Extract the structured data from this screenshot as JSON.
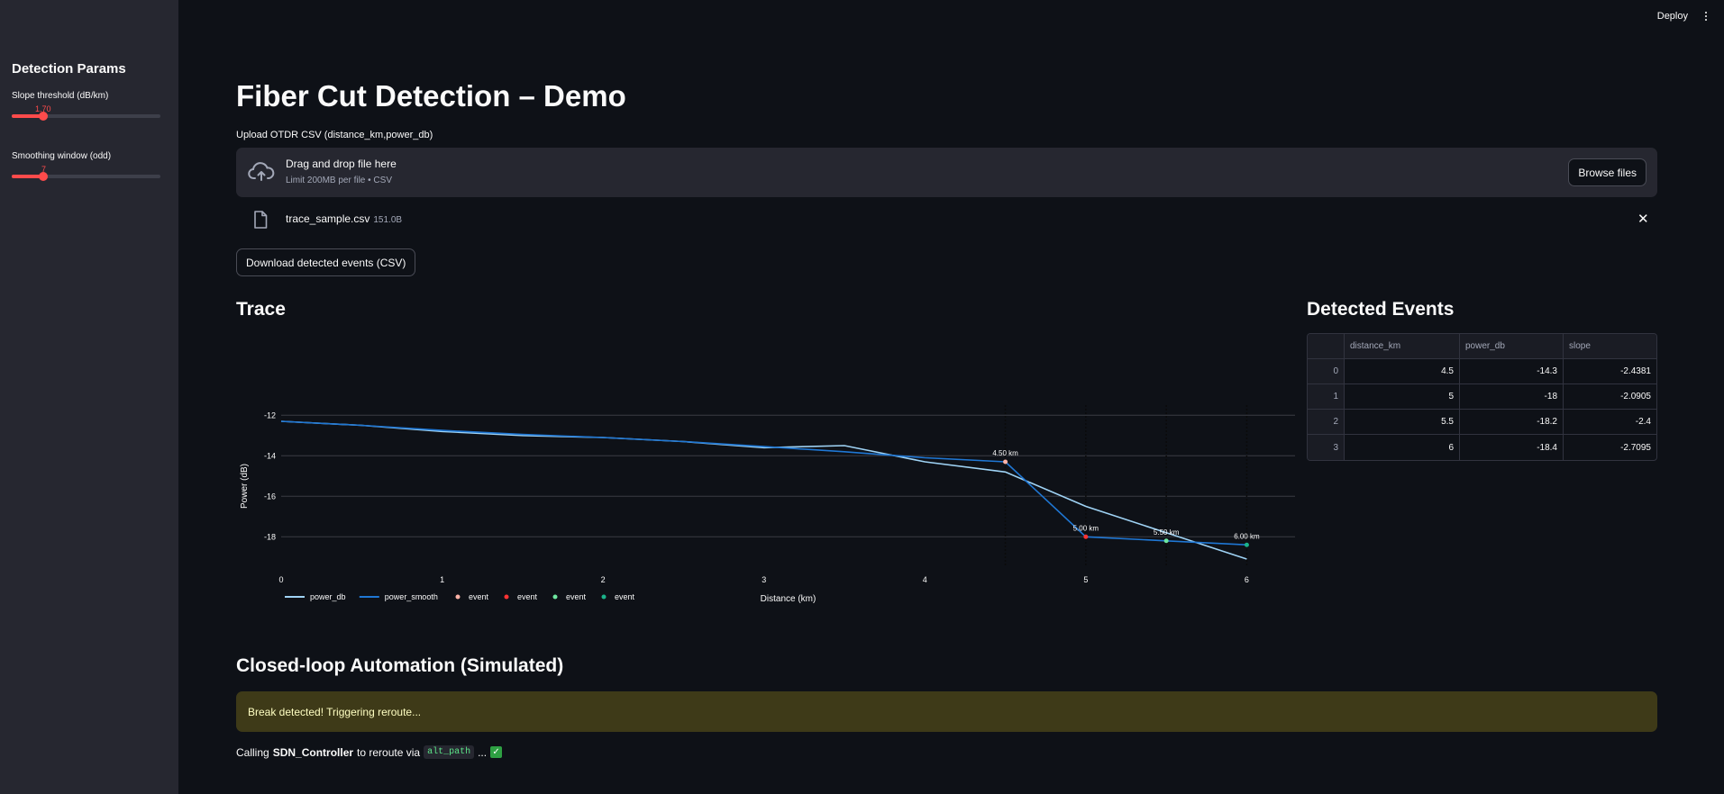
{
  "sidebar": {
    "title": "Detection Params",
    "sliders": [
      {
        "label": "Slope threshold (dB/km)",
        "value": "1.70",
        "fraction": 0.18
      },
      {
        "label": "Smoothing window (odd)",
        "value": "7",
        "fraction": 0.18
      }
    ]
  },
  "topbar": {
    "deploy_label": "Deploy",
    "menu_icon": "kebab-menu-icon"
  },
  "page": {
    "title": "Fiber Cut Detection – Demo"
  },
  "uploader": {
    "label": "Upload OTDR CSV (distance_km,power_db)",
    "drop_title": "Drag and drop file here",
    "drop_subtitle": "Limit 200MB per file • CSV",
    "browse_label": "Browse files",
    "file_name": "trace_sample.csv",
    "file_size": "151.0B"
  },
  "download_label": "Download detected events (CSV)",
  "trace": {
    "heading": "Trace"
  },
  "events": {
    "heading": "Detected Events",
    "columns": [
      "",
      "distance_km",
      "power_db",
      "slope"
    ],
    "rows": [
      [
        "0",
        "4.5",
        "-14.3",
        "-2.4381"
      ],
      [
        "1",
        "5",
        "-18",
        "-2.0905"
      ],
      [
        "2",
        "5.5",
        "-18.2",
        "-2.4"
      ],
      [
        "3",
        "6",
        "-18.4",
        "-2.7095"
      ]
    ]
  },
  "automation": {
    "heading": "Closed-loop Automation (Simulated)",
    "warning": "Break detected! Triggering reroute...",
    "status_prefix": "Calling",
    "status_target": "SDN_Controller",
    "status_mid": "to reroute via",
    "status_code": "alt_path",
    "status_suffix": "..."
  },
  "colors": {
    "accent": "#ff4b4b",
    "power_db": "#9fd3f5",
    "power_smooth": "#1f77d4",
    "event_1": "#ffb3a7",
    "event_2": "#ff3333",
    "event_3": "#6ee7a0",
    "event_4": "#1bb38a"
  },
  "chart_data": {
    "type": "line",
    "xlabel": "Distance (km)",
    "ylabel": "Power (dB)",
    "xlim": [
      0,
      6.3
    ],
    "ylim": [
      -19.5,
      -11.5
    ],
    "x_ticks": [
      "0",
      "1",
      "2",
      "3",
      "4",
      "5",
      "6"
    ],
    "y_ticks": [
      "-12",
      "-14",
      "-16",
      "-18"
    ],
    "grid": "horizontal",
    "legend": "bottom-left",
    "series": [
      {
        "name": "power_db",
        "x": [
          0,
          0.5,
          1,
          1.5,
          2,
          2.5,
          3,
          3.5,
          4,
          4.5,
          5,
          5.5,
          6
        ],
        "y": [
          -12.3,
          -12.5,
          -12.8,
          -13.0,
          -13.1,
          -13.3,
          -13.6,
          -13.5,
          -14.3,
          -14.8,
          -16.5,
          -17.8,
          -19.1
        ]
      },
      {
        "name": "power_smooth",
        "x": [
          0,
          0.5,
          1,
          1.5,
          2,
          2.5,
          3,
          3.5,
          4,
          4.5,
          5,
          5.5,
          6
        ],
        "y": [
          -12.3,
          -12.5,
          -12.75,
          -12.95,
          -13.1,
          -13.3,
          -13.55,
          -13.8,
          -14.1,
          -14.3,
          -18.0,
          -18.2,
          -18.4
        ]
      }
    ],
    "events": [
      {
        "name": "event",
        "x": 4.5,
        "y": -14.3,
        "label": "4.50 km"
      },
      {
        "name": "event",
        "x": 5,
        "y": -18,
        "label": "5.00 km"
      },
      {
        "name": "event",
        "x": 5.5,
        "y": -18.2,
        "label": "5.50 km"
      },
      {
        "name": "event",
        "x": 6,
        "y": -18.4,
        "label": "6.00 km"
      }
    ]
  }
}
